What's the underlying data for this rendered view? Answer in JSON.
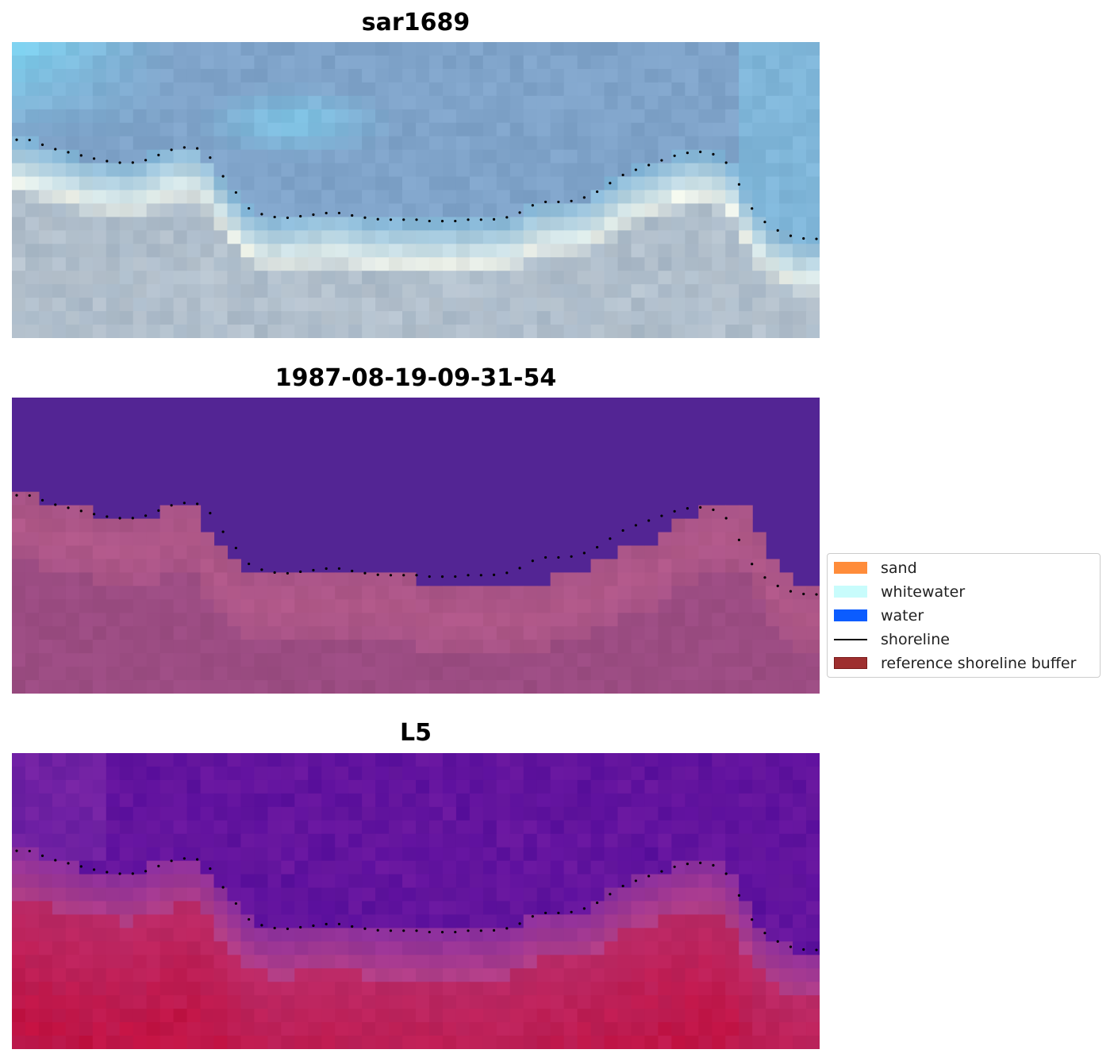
{
  "panels": [
    {
      "title": "sar1689",
      "kind": "sar-rgb"
    },
    {
      "title": "1987-08-19-09-31-54",
      "kind": "classification"
    },
    {
      "title": "L5",
      "kind": "index"
    }
  ],
  "legend": {
    "items": [
      {
        "label": "sand",
        "color": "#ff8c3a",
        "kind": "patch"
      },
      {
        "label": "whitewater",
        "color": "#c8fcfc",
        "kind": "patch"
      },
      {
        "label": "water",
        "color": "#0b5cff",
        "kind": "patch"
      },
      {
        "label": "shoreline",
        "color": "#000000",
        "kind": "line"
      },
      {
        "label": "reference shoreline buffer",
        "color": "#9e2f2f",
        "kind": "patch"
      }
    ]
  },
  "chart_data": {
    "type": "heatmap",
    "colors": {
      "water_class": "#532594",
      "buffer_overlay": "#9b4c82",
      "index_low": "#5a0f9c",
      "index_high": "#c2103f"
    },
    "shoreline_points": [
      [
        0.0,
        0.33
      ],
      [
        0.4,
        0.33
      ],
      [
        0.8,
        0.345
      ],
      [
        1.2,
        0.36
      ],
      [
        1.6,
        0.37
      ],
      [
        2.0,
        0.38
      ],
      [
        2.4,
        0.39
      ],
      [
        2.8,
        0.4
      ],
      [
        3.2,
        0.405
      ],
      [
        3.6,
        0.41
      ],
      [
        4.0,
        0.405
      ],
      [
        4.4,
        0.395
      ],
      [
        4.8,
        0.375
      ],
      [
        5.2,
        0.36
      ],
      [
        5.6,
        0.355
      ],
      [
        6.0,
        0.36
      ],
      [
        6.3,
        0.38
      ],
      [
        6.6,
        0.43
      ],
      [
        7.0,
        0.48
      ],
      [
        7.3,
        0.52
      ],
      [
        7.6,
        0.56
      ],
      [
        8.0,
        0.58
      ],
      [
        8.4,
        0.59
      ],
      [
        8.8,
        0.595
      ],
      [
        9.2,
        0.59
      ],
      [
        9.6,
        0.585
      ],
      [
        10.0,
        0.58
      ],
      [
        10.4,
        0.575
      ],
      [
        10.8,
        0.58
      ],
      [
        11.2,
        0.59
      ],
      [
        11.6,
        0.595
      ],
      [
        12.0,
        0.6
      ],
      [
        12.4,
        0.6
      ],
      [
        12.8,
        0.6
      ],
      [
        13.2,
        0.6
      ],
      [
        13.6,
        0.605
      ],
      [
        14.0,
        0.605
      ],
      [
        14.4,
        0.605
      ],
      [
        14.8,
        0.6
      ],
      [
        15.2,
        0.6
      ],
      [
        15.6,
        0.6
      ],
      [
        16.0,
        0.595
      ],
      [
        16.4,
        0.585
      ],
      [
        16.8,
        0.56
      ],
      [
        17.2,
        0.54
      ],
      [
        17.6,
        0.54
      ],
      [
        18.0,
        0.54
      ],
      [
        18.4,
        0.535
      ],
      [
        18.8,
        0.52
      ],
      [
        19.2,
        0.5
      ],
      [
        19.6,
        0.47
      ],
      [
        20.0,
        0.445
      ],
      [
        20.4,
        0.43
      ],
      [
        20.8,
        0.415
      ],
      [
        21.2,
        0.4
      ],
      [
        21.6,
        0.385
      ],
      [
        22.0,
        0.375
      ],
      [
        22.4,
        0.37
      ],
      [
        22.8,
        0.375
      ],
      [
        23.2,
        0.39
      ],
      [
        23.5,
        0.43
      ],
      [
        23.8,
        0.49
      ],
      [
        24.0,
        0.54
      ],
      [
        24.4,
        0.59
      ],
      [
        24.8,
        0.625
      ],
      [
        25.2,
        0.645
      ],
      [
        25.6,
        0.66
      ],
      [
        26.0,
        0.665
      ],
      [
        26.3,
        0.665
      ]
    ],
    "classification_boundary_row": [
      9,
      9,
      10,
      10,
      10,
      10,
      11,
      11,
      11,
      11,
      11,
      10,
      10,
      10,
      12,
      13,
      14,
      15,
      15,
      15,
      15,
      15,
      15,
      15,
      15,
      15,
      15,
      15,
      15,
      15,
      16,
      16,
      16,
      16,
      16,
      16,
      16,
      16,
      16,
      16,
      15,
      15,
      15,
      14,
      14,
      13,
      13,
      13,
      12,
      11,
      11,
      10,
      10,
      10,
      10,
      12,
      14,
      15,
      16,
      16
    ],
    "grid_cols": 60,
    "grid_rows": 22
  }
}
